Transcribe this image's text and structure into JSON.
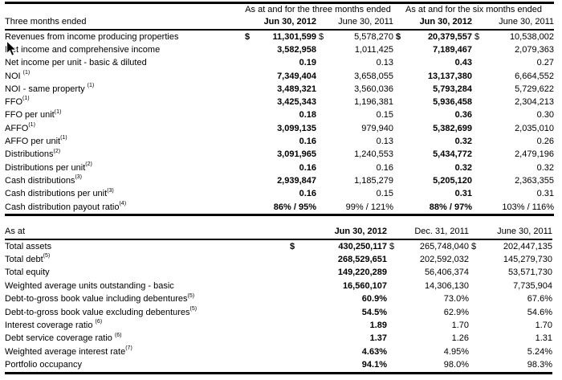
{
  "quarterly_table": {
    "span_headers": [
      "As at and for the three months ended",
      "As at and for the six months ended"
    ],
    "label_header": "Three months ended",
    "columns": [
      "Jun 30, 2012",
      "June 30, 2011",
      "Jun 30, 2012",
      "June 30, 2011"
    ],
    "bold_columns": [
      0,
      2
    ],
    "currency_symbol": "$",
    "rows": [
      {
        "label": "Revenues from income producing properties",
        "sup": "",
        "dollar": true,
        "values": [
          "11,301,599",
          "5,578,270",
          "20,379,557",
          "10,538,002"
        ]
      },
      {
        "label": "Net income and comprehensive income",
        "sup": "",
        "dollar": false,
        "values": [
          "3,582,958",
          "1,011,425",
          "7,189,467",
          "2,079,363"
        ]
      },
      {
        "label": "Net income per unit - basic & diluted",
        "sup": "",
        "dollar": false,
        "values": [
          "0.19",
          "0.13",
          "0.43",
          "0.27"
        ]
      },
      {
        "label": "NOI ",
        "sup": "(1)",
        "dollar": false,
        "values": [
          "7,349,404",
          "3,658,055",
          "13,137,380",
          "6,664,552"
        ]
      },
      {
        "label": "NOI - same property ",
        "sup": "(1)",
        "dollar": false,
        "values": [
          "3,489,321",
          "3,560,036",
          "5,793,284",
          "5,729,622"
        ]
      },
      {
        "label": "FFO",
        "sup": "(1)",
        "dollar": false,
        "values": [
          "3,425,343",
          "1,196,381",
          "5,936,458",
          "2,304,213"
        ]
      },
      {
        "label": "FFO per unit",
        "sup": "(1)",
        "dollar": false,
        "values": [
          "0.18",
          "0.15",
          "0.36",
          "0.30"
        ]
      },
      {
        "label": "AFFO",
        "sup": "(1)",
        "dollar": false,
        "values": [
          "3,099,135",
          "979,940",
          "5,382,699",
          "2,035,010"
        ]
      },
      {
        "label": "AFFO per unit",
        "sup": "(1)",
        "dollar": false,
        "values": [
          "0.16",
          "0.13",
          "0.32",
          "0.26"
        ]
      },
      {
        "label": "Distributions",
        "sup": "(2)",
        "dollar": false,
        "values": [
          "3,091,965",
          "1,240,553",
          "5,434,772",
          "2,479,196"
        ]
      },
      {
        "label": "Distributions per unit",
        "sup": "(2)",
        "dollar": false,
        "values": [
          "0.16",
          "0.16",
          "0.32",
          "0.32"
        ]
      },
      {
        "label": "Cash distributions",
        "sup": "(3)",
        "dollar": false,
        "values": [
          "2,939,847",
          "1,185,279",
          "5,205,120",
          "2,363,355"
        ]
      },
      {
        "label": "Cash distributions per unit",
        "sup": "(3)",
        "dollar": false,
        "values": [
          "0.16",
          "0.15",
          "0.31",
          "0.31"
        ]
      },
      {
        "label": "Cash distribution payout ratio",
        "sup": "(4)",
        "dollar": false,
        "values": [
          "86% / 95%",
          "99% / 121%",
          "88% / 97%",
          "103% / 116%"
        ]
      }
    ]
  },
  "balance_table": {
    "label_header": "As at",
    "columns": [
      "Jun 30, 2012",
      "Dec. 31, 2011",
      "June 30, 2011"
    ],
    "bold_columns": [
      0
    ],
    "currency_symbol": "$",
    "rows": [
      {
        "label": "Total assets",
        "sup": "",
        "dollar": true,
        "values": [
          "430,250,117",
          "265,748,040",
          "202,447,135"
        ]
      },
      {
        "label": "Total debt",
        "sup": "(5)",
        "dollar": false,
        "values": [
          "268,529,651",
          "202,592,032",
          "145,279,730"
        ]
      },
      {
        "label": "Total equity",
        "sup": "",
        "dollar": false,
        "values": [
          "149,220,289",
          "56,406,374",
          "53,571,730"
        ]
      },
      {
        "label": "Weighted average units outstanding - basic",
        "sup": "",
        "dollar": false,
        "values": [
          "16,560,107",
          "14,306,130",
          "7,735,904"
        ]
      },
      {
        "label": "Debt-to-gross book value including debentures",
        "sup": "(5)",
        "dollar": false,
        "values": [
          "60.9%",
          "73.0%",
          "67.6%"
        ]
      },
      {
        "label": "Debt-to-gross book value excluding debentures",
        "sup": "(5)",
        "dollar": false,
        "values": [
          "54.5%",
          "62.9%",
          "54.6%"
        ]
      },
      {
        "label": "Interest coverage ratio ",
        "sup": "(6)",
        "dollar": false,
        "values": [
          "1.89",
          "1.70",
          "1.70"
        ]
      },
      {
        "label": "Debt service coverage ratio ",
        "sup": "(6)",
        "dollar": false,
        "values": [
          "1.37",
          "1.26",
          "1.31"
        ]
      },
      {
        "label": "Weighted average interest rate",
        "sup": "(7)",
        "dollar": false,
        "values": [
          "4.63%",
          "4.95%",
          "5.24%"
        ]
      },
      {
        "label": "Portfolio occupancy",
        "sup": "",
        "dollar": false,
        "values": [
          "94.1%",
          "98.0%",
          "98.3%"
        ]
      }
    ]
  }
}
